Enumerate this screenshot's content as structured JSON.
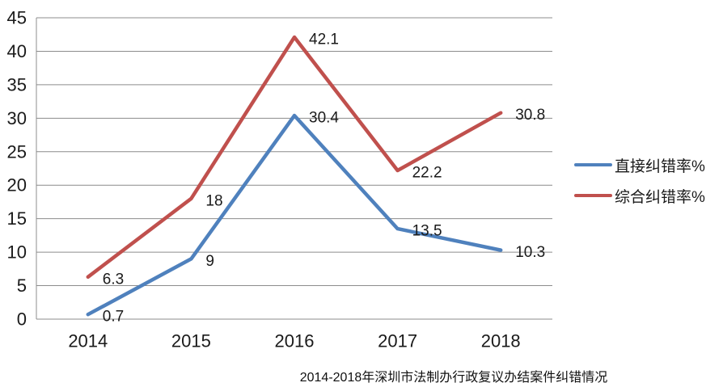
{
  "chart_data": {
    "type": "line",
    "title": "2014-2018年深圳市法制办行政复议办结案件纠错情况",
    "categories": [
      "2014",
      "2015",
      "2016",
      "2017",
      "2018"
    ],
    "series": [
      {
        "name": "直接纠错率%",
        "color": "#4F81BD",
        "values": [
          0.7,
          9,
          30.4,
          13.5,
          10.3
        ]
      },
      {
        "name": "综合纠错率%",
        "color": "#C0504D",
        "values": [
          6.3,
          18,
          42.1,
          22.2,
          30.8
        ]
      }
    ],
    "ylim": [
      0,
      45
    ],
    "ytick_step": 5,
    "yticks": [
      0,
      5,
      10,
      15,
      20,
      25,
      30,
      35,
      40,
      45
    ],
    "grid": true,
    "data_labels": true,
    "legend_position": "right",
    "xlabel": "",
    "ylabel": ""
  },
  "colors": {
    "background": "#FFFFFF",
    "gridline": "#8C8C8C",
    "axis": "#8C8C8C",
    "text": "#1A1A1A",
    "series_blue": "#4F81BD",
    "series_red": "#C0504D"
  }
}
